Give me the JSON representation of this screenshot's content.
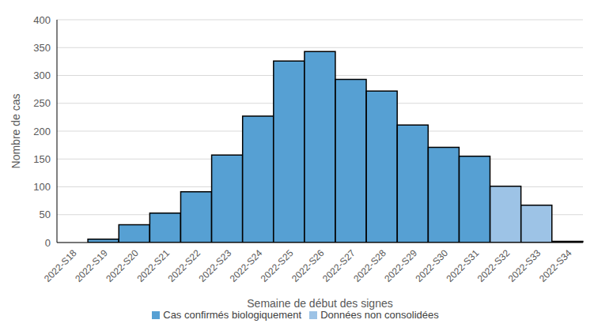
{
  "chart_data": {
    "type": "bar",
    "x_label": "Semaine de début des signes",
    "y_label": "Nombre de cas",
    "categories": [
      "2022-S18",
      "2022-S19",
      "2022-S20",
      "2022-S21",
      "2022-S22",
      "2022-S23",
      "2022-S24",
      "2022-S25",
      "2022-S26",
      "2022-S27",
      "2022-S28",
      "2022-S29",
      "2022-S30",
      "2022-S31",
      "2022-S32",
      "2022-S33",
      "2022-S34"
    ],
    "series": [
      {
        "name": "Cas confirmés biologiquement",
        "color": "#56a0d3",
        "values": [
          0,
          6,
          32,
          53,
          91,
          157,
          227,
          326,
          343,
          293,
          272,
          211,
          171,
          155,
          null,
          null,
          2
        ]
      },
      {
        "name": "Données non consolidées",
        "color": "#9dc3e6",
        "values": [
          null,
          null,
          null,
          null,
          null,
          null,
          null,
          null,
          null,
          null,
          null,
          null,
          null,
          null,
          101,
          67,
          null
        ]
      }
    ],
    "ylim": [
      0,
      400
    ],
    "yticks": [
      0,
      50,
      100,
      150,
      200,
      250,
      300,
      350,
      400
    ],
    "grid": true,
    "stacked": true,
    "legend": "bottom"
  }
}
